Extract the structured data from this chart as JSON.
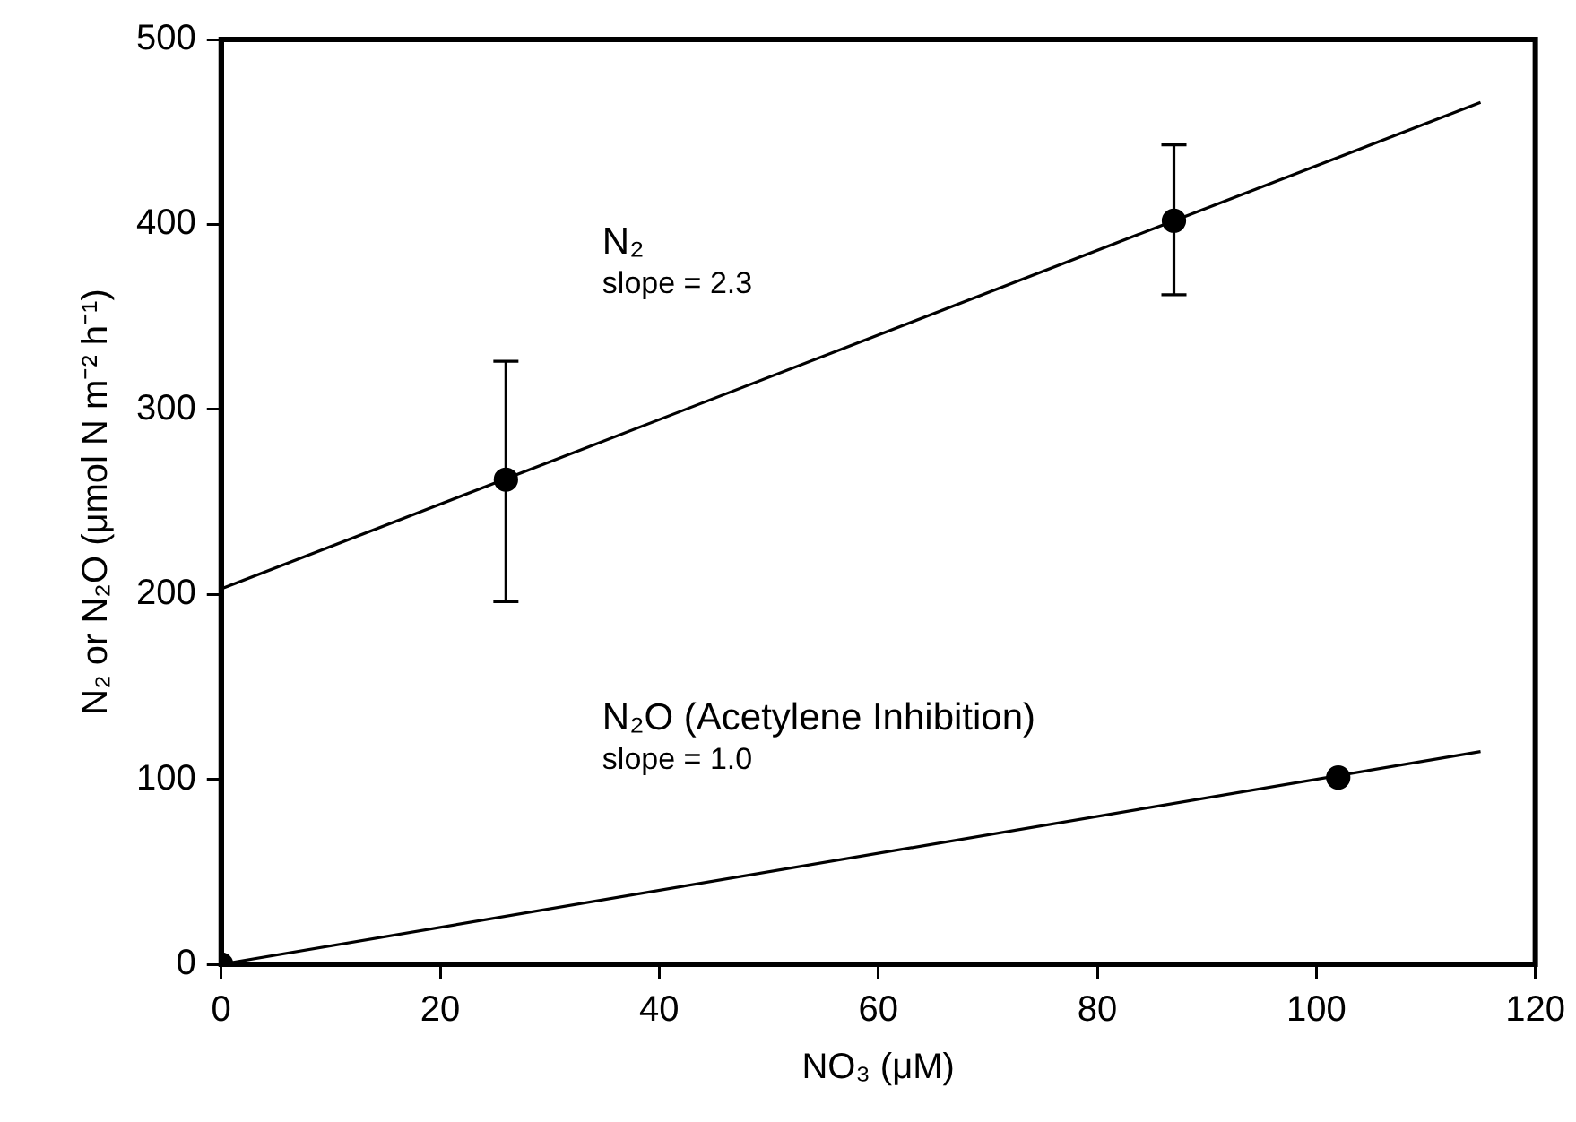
{
  "chart_data": {
    "type": "scatter",
    "xlabel": "NO₃ (μM)",
    "ylabel": "N₂ or N₂O (μmol N m⁻² h⁻¹)",
    "xlim": [
      0,
      120
    ],
    "xticks": [
      0,
      20,
      40,
      60,
      80,
      100,
      120
    ],
    "ylim": [
      0,
      500
    ],
    "yticks": [
      0,
      100,
      200,
      300,
      400,
      500
    ],
    "grid": false,
    "legend": false,
    "marker": "circle",
    "series": [
      {
        "color": "#000000",
        "x": [
          26,
          87
        ],
        "values": [
          262,
          402
        ],
        "errors": [
          [
            196,
            326
          ],
          [
            362,
            443
          ]
        ]
      },
      {
        "color": "#000000",
        "x": [
          0,
          102
        ],
        "values": [
          0,
          101
        ]
      },
      {
        "type": "line",
        "color": "#000000",
        "marker": "none",
        "x": [
          0,
          115
        ],
        "values": [
          203,
          466
        ]
      },
      {
        "type": "line",
        "color": "#000000",
        "marker": "none",
        "x": [
          0,
          115
        ],
        "values": [
          0,
          115
        ]
      }
    ],
    "annotations": [
      "N₂",
      "slope = 2.3",
      "N₂O (Acetylene Inhibition)",
      "slope = 1.0"
    ]
  }
}
